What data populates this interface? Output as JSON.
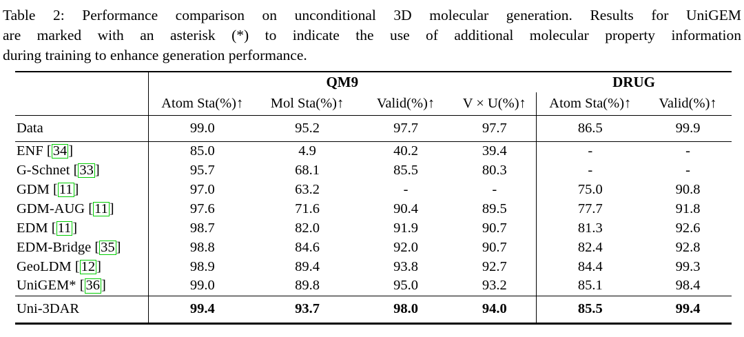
{
  "caption": {
    "line1": "Table 2: Performance comparison on unconditional 3D molecular generation. Results for UniGEM",
    "line2": "are marked with an asterisk (*) to indicate the use of additional molecular property information",
    "line3": "during training to enhance generation performance."
  },
  "table": {
    "column_groups": [
      {
        "label": "QM9",
        "span": 4
      },
      {
        "label": "DRUG",
        "span": 2
      }
    ],
    "columns": [
      "Atom Sta(%)↑",
      "Mol Sta(%)↑",
      "Valid(%)↑",
      "V × U(%)↑",
      "Atom Sta(%)↑",
      "Valid(%)↑"
    ],
    "data_row": {
      "name": "Data",
      "citation": null,
      "values": [
        "99.0",
        "95.2",
        "97.7",
        "97.7",
        "86.5",
        "99.9"
      ]
    },
    "method_rows": [
      {
        "name": "ENF",
        "citation": "34",
        "values": [
          "85.0",
          "4.9",
          "40.2",
          "39.4",
          "-",
          "-"
        ]
      },
      {
        "name": "G-Schnet",
        "citation": "33",
        "values": [
          "95.7",
          "68.1",
          "85.5",
          "80.3",
          "-",
          "-"
        ]
      },
      {
        "name": "GDM",
        "citation": "11",
        "values": [
          "97.0",
          "63.2",
          "-",
          "-",
          "75.0",
          "90.8"
        ]
      },
      {
        "name": "GDM-AUG",
        "citation": "11",
        "values": [
          "97.6",
          "71.6",
          "90.4",
          "89.5",
          "77.7",
          "91.8"
        ]
      },
      {
        "name": "EDM",
        "citation": "11",
        "values": [
          "98.7",
          "82.0",
          "91.9",
          "90.7",
          "81.3",
          "92.6"
        ]
      },
      {
        "name": "EDM-Bridge",
        "citation": "35",
        "values": [
          "98.8",
          "84.6",
          "92.0",
          "90.7",
          "82.4",
          "92.8"
        ]
      },
      {
        "name": "GeoLDM",
        "citation": "12",
        "values": [
          "98.9",
          "89.4",
          "93.8",
          "92.7",
          "84.4",
          "99.3"
        ]
      },
      {
        "name": "UniGEM*",
        "citation": "36",
        "values": [
          "99.0",
          "89.8",
          "95.0",
          "93.2",
          "85.1",
          "98.4"
        ]
      }
    ],
    "result_row": {
      "name": "Uni-3DAR",
      "citation": null,
      "values": [
        "99.4",
        "93.7",
        "98.0",
        "94.0",
        "85.5",
        "99.4"
      ]
    }
  },
  "colors": {
    "citation_box_border": "#00cc00",
    "text": "#000000",
    "background": "#ffffff"
  }
}
